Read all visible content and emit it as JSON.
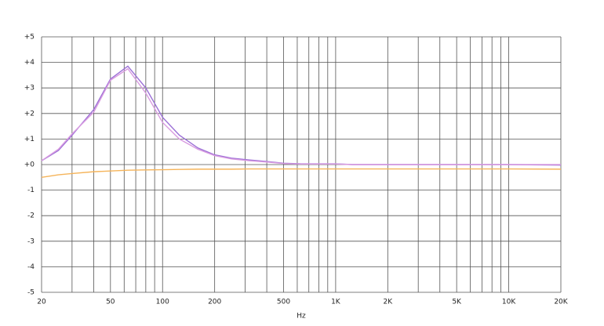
{
  "chart_data": {
    "type": "line",
    "x_label": "Hz",
    "xscale": "log",
    "x": [
      20,
      25,
      30,
      40,
      50,
      63,
      80,
      100,
      125,
      160,
      200,
      250,
      315,
      400,
      500,
      630,
      800,
      1000,
      1250,
      2000,
      5000,
      10000,
      20000
    ],
    "series": [
      {
        "color": "#9b6fd6",
        "values": [
          0.15,
          0.55,
          1.15,
          2.15,
          3.35,
          3.85,
          3.0,
          1.85,
          1.15,
          0.65,
          0.38,
          0.25,
          0.18,
          0.12,
          0.05,
          0.03,
          0.03,
          0.03,
          0.0,
          0.0,
          0.0,
          0.0,
          -0.02
        ]
      },
      {
        "color": "#d89be0",
        "values": [
          0.15,
          0.6,
          1.2,
          2.05,
          3.3,
          3.75,
          2.8,
          1.65,
          1.0,
          0.6,
          0.35,
          0.22,
          0.15,
          0.1,
          0.04,
          0.02,
          0.02,
          0.02,
          0.0,
          0.0,
          0.0,
          0.0,
          0.0
        ]
      },
      {
        "color": "#f5b45a",
        "values": [
          -0.5,
          -0.4,
          -0.35,
          -0.28,
          -0.25,
          -0.22,
          -0.21,
          -0.2,
          -0.19,
          -0.18,
          -0.18,
          -0.18,
          -0.17,
          -0.17,
          -0.17,
          -0.17,
          -0.17,
          -0.17,
          -0.17,
          -0.17,
          -0.17,
          -0.17,
          -0.18
        ]
      }
    ],
    "xlim": [
      20,
      20000
    ],
    "xticks": [
      20,
      50,
      100,
      200,
      500,
      {
        "value": 1000,
        "label": "1K"
      },
      {
        "value": 2000,
        "label": "2K"
      },
      {
        "value": 5000,
        "label": "5K"
      },
      {
        "value": 10000,
        "label": "10K"
      },
      {
        "value": 20000,
        "label": "20K"
      }
    ],
    "xgrid": [
      20,
      30,
      40,
      50,
      60,
      70,
      80,
      90,
      100,
      200,
      300,
      400,
      500,
      600,
      700,
      800,
      900,
      1000,
      2000,
      3000,
      4000,
      5000,
      6000,
      7000,
      8000,
      9000,
      10000,
      20000
    ],
    "ylim": [
      -5,
      5
    ],
    "yticks": [
      {
        "value": 5,
        "label": "+5"
      },
      {
        "value": 4,
        "label": "+4"
      },
      {
        "value": 3,
        "label": "+3"
      },
      {
        "value": 2,
        "label": "+2"
      },
      {
        "value": 1,
        "label": "+1"
      },
      {
        "value": 0,
        "label": "+0"
      },
      -1,
      -2,
      -3,
      -4,
      -5
    ],
    "grid": true
  }
}
